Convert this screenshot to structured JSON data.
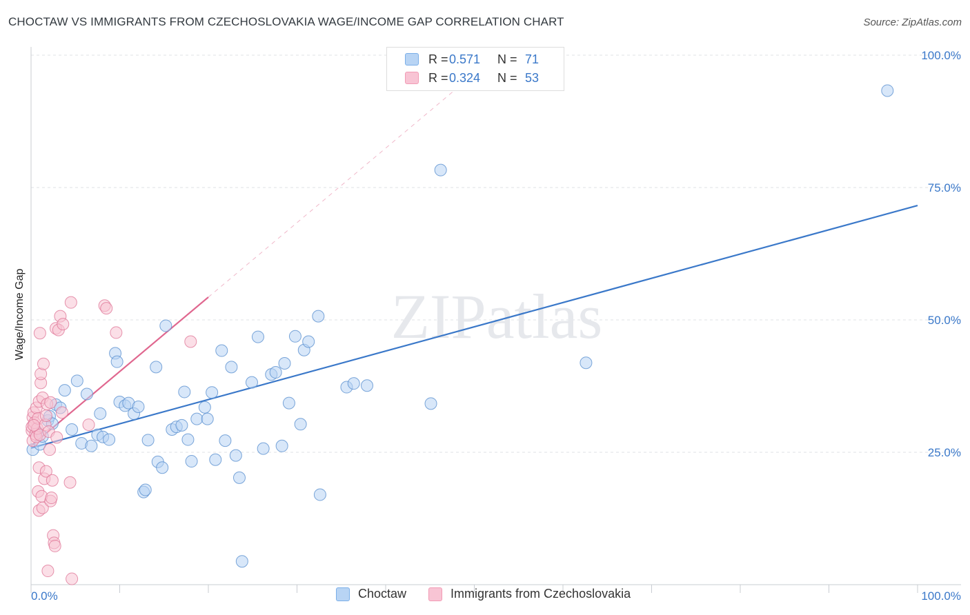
{
  "title": "CHOCTAW VS IMMIGRANTS FROM CZECHOSLOVAKIA WAGE/INCOME GAP CORRELATION CHART",
  "source": "Source: ZipAtlas.com",
  "watermark": "ZIPatlas",
  "legend": {
    "rows": [
      {
        "r_label": "R =",
        "r_value": "0.571",
        "n_label": "N =",
        "n_value": "71"
      },
      {
        "r_label": "R =",
        "r_value": "0.324",
        "n_label": "N =",
        "n_value": "53"
      }
    ]
  },
  "chart_data": {
    "type": "scatter",
    "title": "CHOCTAW VS IMMIGRANTS FROM CZECHOSLOVAKIA WAGE/INCOME GAP CORRELATION CHART",
    "xlabel": "",
    "ylabel": "Wage/Income Gap",
    "xlim": [
      0,
      100
    ],
    "ylim": [
      0,
      100
    ],
    "x_tick_labels": [
      "0.0%",
      "100.0%"
    ],
    "y_tick_labels": [
      {
        "value": 25,
        "label": "25.0%"
      },
      {
        "value": 50,
        "label": "50.0%"
      },
      {
        "value": 75,
        "label": "75.0%"
      },
      {
        "value": 100,
        "label": "100.0%"
      }
    ],
    "series": [
      {
        "name": "Choctaw",
        "color": "#7aaee8",
        "stroke": "#5a90d0",
        "fill": "#b8d4f4",
        "points": [
          [
            0.2,
            25.5
          ],
          [
            0.6,
            29
          ],
          [
            1,
            26.5
          ],
          [
            1.3,
            28
          ],
          [
            1.9,
            31
          ],
          [
            2.1,
            31.8
          ],
          [
            2.4,
            30.4
          ],
          [
            2.8,
            34
          ],
          [
            3.3,
            33.4
          ],
          [
            3.8,
            36.7
          ],
          [
            4.6,
            29.3
          ],
          [
            5.2,
            38.5
          ],
          [
            5.7,
            26.7
          ],
          [
            6.3,
            36
          ],
          [
            6.8,
            26.2
          ],
          [
            7.5,
            28.3
          ],
          [
            7.8,
            32.3
          ],
          [
            8.1,
            27.9
          ],
          [
            8.8,
            27.4
          ],
          [
            9.5,
            43.7
          ],
          [
            9.7,
            42.1
          ],
          [
            10,
            34.5
          ],
          [
            10.6,
            33.8
          ],
          [
            11,
            34.3
          ],
          [
            11.6,
            32.3
          ],
          [
            12.1,
            33.6
          ],
          [
            12.7,
            17.5
          ],
          [
            12.9,
            17.9
          ],
          [
            13.2,
            27.3
          ],
          [
            14.1,
            41.1
          ],
          [
            14.3,
            23.2
          ],
          [
            14.8,
            22.1
          ],
          [
            15.2,
            48.9
          ],
          [
            15.9,
            29.3
          ],
          [
            16.4,
            29.8
          ],
          [
            17,
            30.1
          ],
          [
            17.3,
            36.4
          ],
          [
            17.7,
            27.4
          ],
          [
            18.1,
            23.3
          ],
          [
            18.7,
            31.3
          ],
          [
            19.6,
            33.5
          ],
          [
            19.9,
            31.3
          ],
          [
            20.4,
            36.3
          ],
          [
            20.8,
            23.6
          ],
          [
            21.5,
            44.2
          ],
          [
            21.9,
            27.2
          ],
          [
            22.6,
            41.1
          ],
          [
            23.1,
            24.4
          ],
          [
            23.5,
            20.2
          ],
          [
            23.8,
            4.4
          ],
          [
            24.9,
            38.2
          ],
          [
            25.6,
            46.8
          ],
          [
            26.2,
            25.7
          ],
          [
            27.1,
            39.7
          ],
          [
            27.6,
            40.1
          ],
          [
            28.3,
            26.2
          ],
          [
            28.6,
            41.8
          ],
          [
            29.1,
            34.3
          ],
          [
            29.8,
            46.9
          ],
          [
            30.4,
            30.3
          ],
          [
            30.8,
            44.3
          ],
          [
            31.3,
            45.9
          ],
          [
            32.4,
            50.7
          ],
          [
            32.6,
            17
          ],
          [
            35.6,
            37.3
          ],
          [
            36.4,
            38
          ],
          [
            37.9,
            37.6
          ],
          [
            45.1,
            34.2
          ],
          [
            46.2,
            78.3
          ],
          [
            62.6,
            41.9
          ],
          [
            96.6,
            93.3
          ]
        ]
      },
      {
        "name": "Immigrants from Czechoslovakia",
        "color": "#f29ab4",
        "stroke": "#e07898",
        "fill": "#f8c4d4",
        "points": [
          [
            0.1,
            29.1
          ],
          [
            0.1,
            29.8
          ],
          [
            0.2,
            27.2
          ],
          [
            0.2,
            31.6
          ],
          [
            0.3,
            32.5
          ],
          [
            0.4,
            30.6
          ],
          [
            0.5,
            28.4
          ],
          [
            0.6,
            33.4
          ],
          [
            0.6,
            27.9
          ],
          [
            0.7,
            29.5
          ],
          [
            0.8,
            31.4
          ],
          [
            0.8,
            17.6
          ],
          [
            0.9,
            22.1
          ],
          [
            0.9,
            14
          ],
          [
            0.9,
            34.6
          ],
          [
            1,
            28.3
          ],
          [
            1,
            47.5
          ],
          [
            1.1,
            38.1
          ],
          [
            1.1,
            39.8
          ],
          [
            1.2,
            16.7
          ],
          [
            1.3,
            35.3
          ],
          [
            1.3,
            14.5
          ],
          [
            1.4,
            41.7
          ],
          [
            1.5,
            20
          ],
          [
            1.6,
            30.2
          ],
          [
            1.7,
            21.4
          ],
          [
            1.7,
            31.9
          ],
          [
            1.8,
            34.1
          ],
          [
            1.9,
            2.6
          ],
          [
            2,
            28.9
          ],
          [
            2.1,
            25.5
          ],
          [
            2.2,
            34.4
          ],
          [
            2.2,
            15.8
          ],
          [
            2.3,
            16.4
          ],
          [
            2.4,
            19.7
          ],
          [
            2.5,
            9.3
          ],
          [
            2.6,
            7.9
          ],
          [
            2.7,
            7.3
          ],
          [
            2.8,
            48.4
          ],
          [
            2.9,
            27.8
          ],
          [
            3.1,
            48.1
          ],
          [
            3.3,
            50.7
          ],
          [
            3.5,
            32.5
          ],
          [
            3.6,
            49.2
          ],
          [
            4.4,
            19.3
          ],
          [
            4.5,
            53.3
          ],
          [
            4.6,
            1.1
          ],
          [
            6.5,
            30.2
          ],
          [
            8.3,
            52.7
          ],
          [
            8.5,
            52.2
          ],
          [
            9.6,
            47.6
          ],
          [
            18,
            45.9
          ],
          [
            0.3,
            30.1
          ]
        ]
      }
    ],
    "trend_lines": [
      {
        "series": "Choctaw",
        "x": [
          0,
          100
        ],
        "y": [
          25.8,
          71.6
        ],
        "style": "solid"
      },
      {
        "series": "Immigrants from Czechoslovakia",
        "x": [
          0,
          20
        ],
        "y": [
          26.2,
          54.3
        ],
        "style": "solid"
      },
      {
        "series": "Immigrants from Czechoslovakia",
        "x": [
          20,
          50
        ],
        "y": [
          54.3,
          96.5
        ],
        "style": "dashed"
      }
    ],
    "grid": true,
    "legend_position": "top-center"
  }
}
